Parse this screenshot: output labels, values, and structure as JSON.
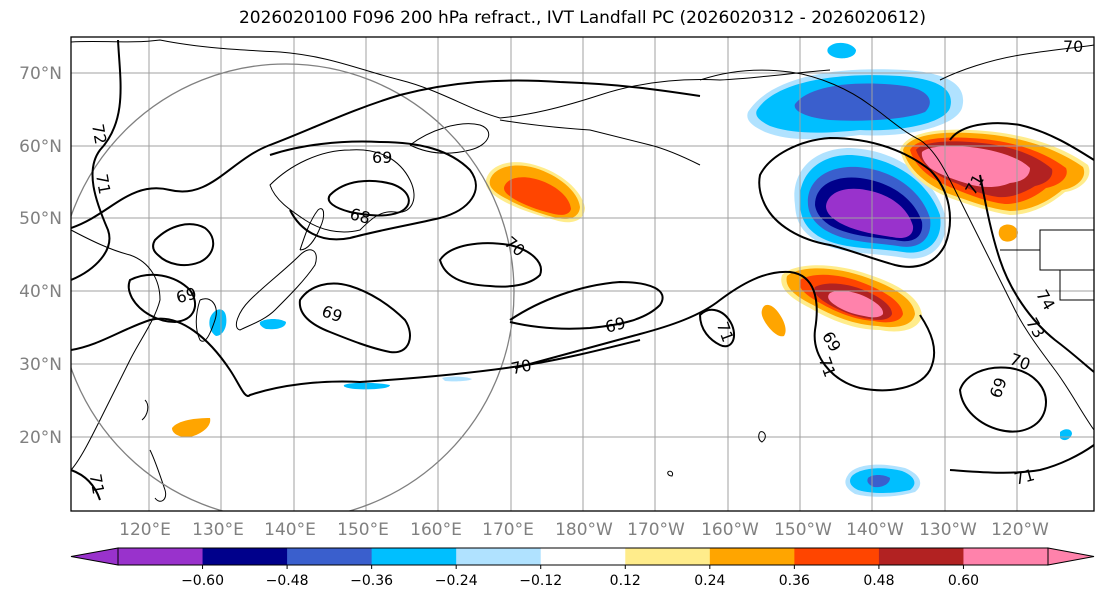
{
  "title": "2026020100 F096 200 hPa refract., IVT Landfall PC (2026020312 - 2026020612)",
  "latitude_labels": [
    "70°N",
    "60°N",
    "50°N",
    "40°N",
    "30°N",
    "20°N"
  ],
  "longitude_labels": [
    "120°E",
    "130°E",
    "140°E",
    "150°E",
    "160°E",
    "170°E",
    "180°W",
    "170°W",
    "160°W",
    "150°W",
    "140°W",
    "130°W",
    "120°W"
  ],
  "contour_labels": [
    "72",
    "71",
    "69",
    "68",
    "70",
    "69",
    "69",
    "69",
    "70",
    "71",
    "71",
    "69",
    "71",
    "70",
    "69",
    "73",
    "74",
    "71",
    "71",
    "70"
  ],
  "colorbar": {
    "tick_labels": [
      "−0.60",
      "−0.48",
      "−0.36",
      "−0.24",
      "−0.12",
      "0.12",
      "0.24",
      "0.36",
      "0.48",
      "0.60"
    ],
    "colors": [
      "#9932CC",
      "#00008B",
      "#3A5FCD",
      "#00BFFF",
      "#B0E2FF",
      "#FFFFFF",
      "#FFEC8B",
      "#FFA500",
      "#FF4500",
      "#B22222",
      "#FF82AB"
    ],
    "extend": "both"
  },
  "style": {
    "grid_color": "#a0a0a0",
    "coast_color": "#000000",
    "circle_color": "#808080",
    "axis_label_color": "#808080"
  }
}
